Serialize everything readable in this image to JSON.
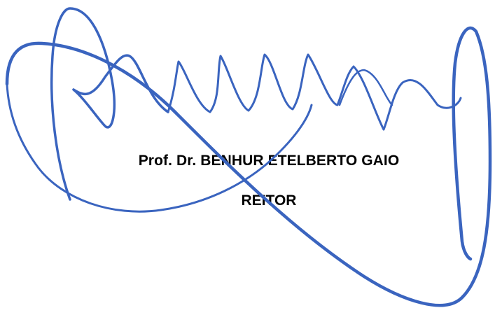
{
  "signatory": {
    "name": "Prof. Dr. BENHUR ETELBERTO GAIO",
    "title": "REITOR"
  },
  "signature": {
    "stroke_color": "#3a64bf"
  }
}
